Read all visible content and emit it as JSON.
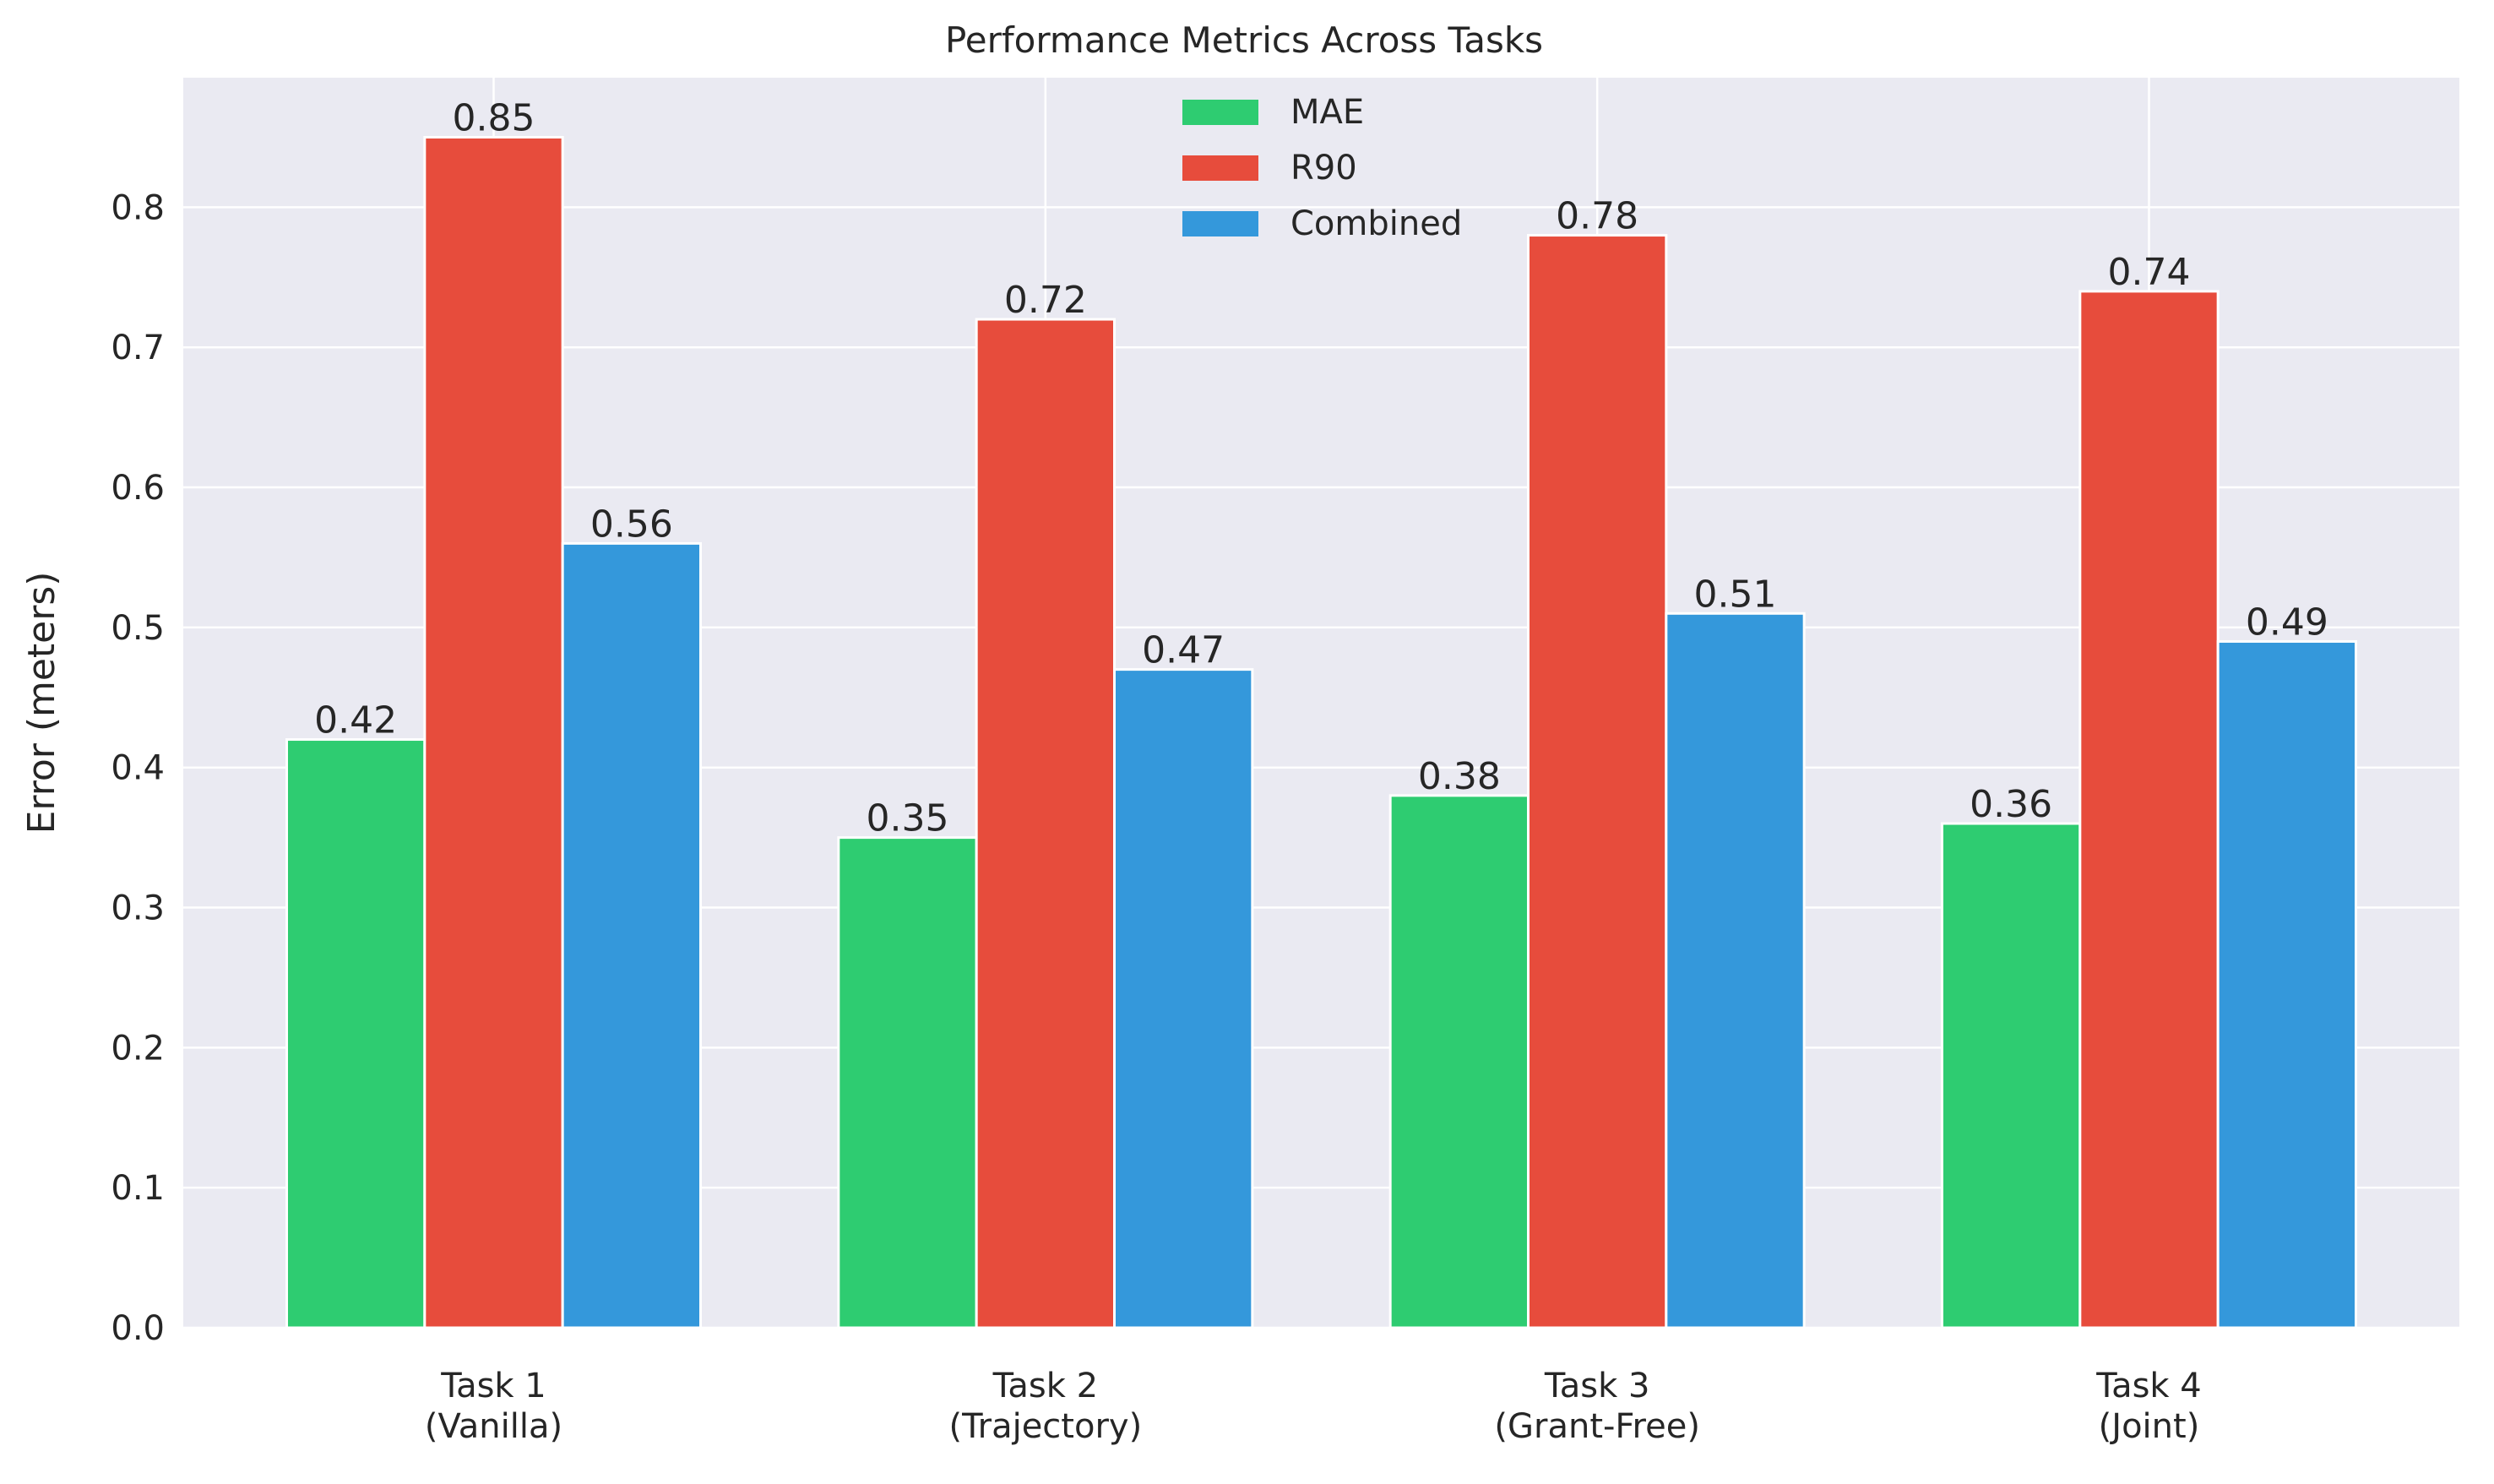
{
  "chart_data": {
    "type": "bar",
    "title": "Performance Metrics Across Tasks",
    "xlabel": "",
    "ylabel": "Error (meters)",
    "categories": [
      "Task 1\n(Vanilla)",
      "Task 2\n(Trajectory)",
      "Task 3\n(Grant-Free)",
      "Task 4\n(Joint)"
    ],
    "series": [
      {
        "name": "MAE",
        "color": "#2ecc71",
        "values": [
          0.42,
          0.35,
          0.38,
          0.36
        ]
      },
      {
        "name": "R90",
        "color": "#e74c3c",
        "values": [
          0.85,
          0.72,
          0.78,
          0.74
        ]
      },
      {
        "name": "Combined",
        "color": "#3498db",
        "values": [
          0.56,
          0.47,
          0.51,
          0.49
        ]
      }
    ],
    "ylim": [
      0,
      0.8925
    ],
    "yticks": [
      "0.0",
      "0.1",
      "0.2",
      "0.3",
      "0.4",
      "0.5",
      "0.6",
      "0.7",
      "0.8"
    ],
    "grid": true,
    "legend_position": "top-center",
    "background_color": "#eaeaf2",
    "grid_color": "#ffffff",
    "value_label_format": "2-decimal"
  }
}
